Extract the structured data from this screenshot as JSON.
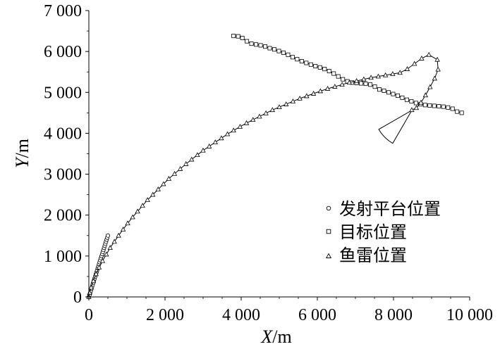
{
  "chart_data": {
    "type": "line",
    "xlabel_var": "X",
    "xlabel_unit": "/m",
    "ylabel_var": "Y",
    "ylabel_unit": "/m",
    "xlim": [
      0,
      10000
    ],
    "ylim": [
      0,
      7000
    ],
    "xticks": [
      0,
      2000,
      4000,
      6000,
      8000,
      10000
    ],
    "xtick_labels": [
      "0",
      "2 000",
      "4 000",
      "6 000",
      "8 000",
      "10 000"
    ],
    "yticks": [
      0,
      1000,
      2000,
      3000,
      4000,
      5000,
      6000,
      7000
    ],
    "ytick_labels": [
      "0",
      "1 000",
      "2 000",
      "3 000",
      "4 000",
      "5 000",
      "6 000",
      "7 000"
    ],
    "grid": false,
    "legend_position": "bottom-right",
    "series": [
      {
        "name": "发射平台位置",
        "marker": "circle",
        "x": [
          0,
          17,
          33,
          50,
          67,
          83,
          100,
          117,
          133,
          150,
          167,
          183,
          200,
          217,
          233,
          250,
          267,
          283,
          300,
          317,
          333,
          350,
          367,
          383,
          400,
          417,
          433,
          450,
          467,
          483,
          500
        ],
        "y": [
          0,
          50,
          100,
          150,
          200,
          250,
          300,
          350,
          400,
          450,
          500,
          550,
          600,
          650,
          700,
          750,
          800,
          850,
          900,
          950,
          1000,
          1050,
          1100,
          1150,
          1200,
          1250,
          1300,
          1350,
          1400,
          1450,
          1500
        ]
      },
      {
        "name": "目标位置",
        "marker": "square",
        "x": [
          3800,
          3920,
          4030,
          4150,
          4270,
          4390,
          4510,
          4630,
          4750,
          4870,
          4990,
          5110,
          5230,
          5350,
          5470,
          5590,
          5710,
          5830,
          5950,
          6070,
          6190,
          6310,
          6430,
          6550,
          6670,
          6790,
          6910,
          7030,
          7150,
          7270,
          7390,
          7510,
          7630,
          7750,
          7870,
          7990,
          8110,
          8230,
          8350,
          8470,
          8590,
          8710,
          8830,
          8950,
          9070,
          9190,
          9310,
          9430,
          9550,
          9670,
          9790
        ],
        "y": [
          6380,
          6370,
          6330,
          6250,
          6190,
          6170,
          6150,
          6120,
          6080,
          6050,
          6010,
          5970,
          5920,
          5860,
          5810,
          5760,
          5720,
          5680,
          5640,
          5610,
          5570,
          5520,
          5460,
          5390,
          5320,
          5270,
          5240,
          5230,
          5220,
          5210,
          5190,
          5140,
          5070,
          5040,
          5000,
          4960,
          4920,
          4870,
          4820,
          4780,
          4740,
          4710,
          4690,
          4680,
          4670,
          4660,
          4650,
          4630,
          4600,
          4530,
          4500
        ]
      },
      {
        "name": "鱼雷位置",
        "marker": "triangle",
        "x": [
          0,
          20,
          60,
          120,
          190,
          270,
          360,
          460,
          560,
          670,
          780,
          900,
          1020,
          1150,
          1280,
          1410,
          1540,
          1680,
          1820,
          1960,
          2100,
          2250,
          2400,
          2550,
          2700,
          2850,
          3000,
          3160,
          3320,
          3480,
          3640,
          3800,
          3970,
          4140,
          4310,
          4480,
          4650,
          4820,
          5000,
          5180,
          5360,
          5540,
          5720,
          5900,
          6080,
          6270,
          6460,
          6650,
          6840,
          7030,
          7220,
          7410,
          7600,
          7790,
          7980,
          8170,
          8360,
          8550,
          8740,
          8930,
          9150,
          9170,
          9080,
          8960,
          8840,
          8720,
          8600,
          8480
        ],
        "y": [
          0,
          100,
          230,
          390,
          560,
          720,
          880,
          1040,
          1200,
          1350,
          1500,
          1650,
          1800,
          1950,
          2090,
          2230,
          2370,
          2500,
          2630,
          2760,
          2890,
          3010,
          3130,
          3250,
          3360,
          3470,
          3580,
          3680,
          3780,
          3880,
          3980,
          4070,
          4160,
          4250,
          4330,
          4410,
          4490,
          4570,
          4640,
          4710,
          4780,
          4850,
          4910,
          4970,
          5030,
          5090,
          5140,
          5190,
          5240,
          5280,
          5320,
          5360,
          5390,
          5420,
          5450,
          5480,
          5570,
          5700,
          5830,
          5920,
          5800,
          5560,
          5340,
          5130,
          4930,
          4750,
          4620,
          4570
        ]
      }
    ],
    "annotations": [
      {
        "type": "sector",
        "apex": [
          8480,
          4560
        ],
        "radius": 1000,
        "direction_deg": 135,
        "half_angle_deg": 15,
        "style": "outline"
      }
    ]
  }
}
